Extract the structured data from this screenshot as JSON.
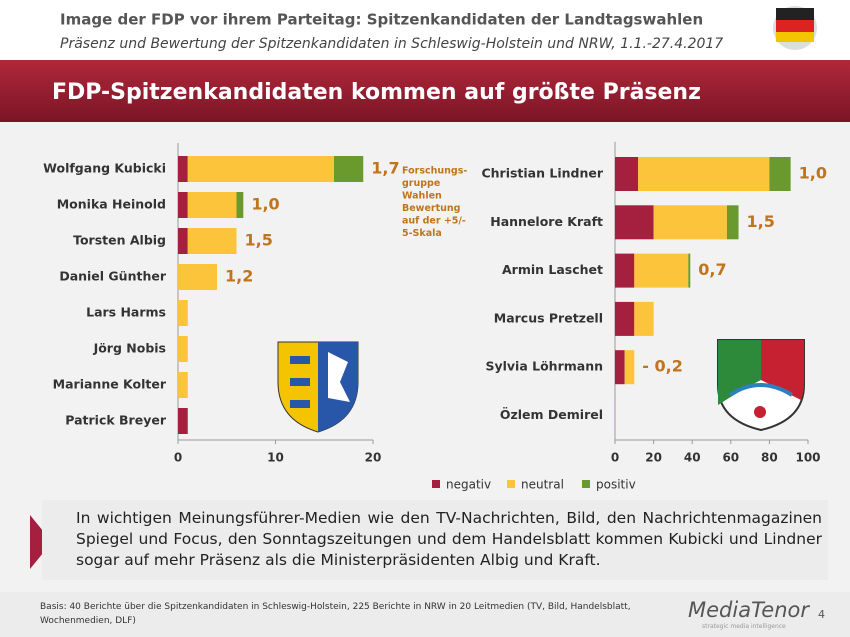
{
  "header": {
    "title": "Image der FDP vor ihrem Parteitag: Spitzenkandidaten der Landtagswahlen",
    "subtitle": "Präsenz und Bewertung der Spitzenkandidaten in Schleswig-Holstein und NRW, 1.1.-27.4.2017",
    "banner": "FDP-Spitzenkandidaten kommen auf größte Präsenz"
  },
  "chart_data": [
    {
      "type": "stacked-bar-horizontal",
      "categories": [
        "Wolfgang Kubicki",
        "Monika Heinold",
        "Torsten Albig",
        "Daniel Günther",
        "Lars Harms",
        "Jörg Nobis",
        "Marianne Kolter",
        "Patrick Breyer"
      ],
      "series": [
        {
          "name": "negativ",
          "color": "#a51f3f",
          "values": [
            1,
            1,
            1,
            0,
            0,
            0,
            0,
            1
          ]
        },
        {
          "name": "neutral",
          "color": "#fbc43a",
          "values": [
            15,
            5,
            5,
            4,
            1,
            1,
            1,
            0
          ]
        },
        {
          "name": "positiv",
          "color": "#6a9a2e",
          "values": [
            3,
            0.7,
            0,
            0,
            0,
            0,
            0,
            0
          ]
        }
      ],
      "rating_labels": [
        "1,7",
        "1,0",
        "1,5",
        "1,2",
        null,
        null,
        null,
        null
      ],
      "annotation": [
        "Forschungs-",
        "gruppe",
        "Wahlen",
        "Bewertung",
        "auf der +5/-",
        "5-Skala"
      ],
      "xlim": [
        0,
        20
      ],
      "xticks": [
        0,
        10,
        20
      ]
    },
    {
      "type": "stacked-bar-horizontal",
      "categories": [
        "Christian Lindner",
        "Hannelore Kraft",
        "Armin Laschet",
        "Marcus Pretzell",
        "Sylvia Löhrmann",
        "Özlem Demirel"
      ],
      "series": [
        {
          "color": "#a51f3f",
          "values": [
            12,
            20,
            10,
            10,
            5,
            0
          ]
        },
        {
          "color": "#fbc43a",
          "values": [
            68,
            38,
            28,
            10,
            5,
            0.5
          ]
        },
        {
          "color": "#6a9a2e",
          "values": [
            11,
            6,
            1,
            0,
            0,
            0
          ]
        }
      ],
      "rating_labels": [
        "1,0",
        "1,5",
        "0,7",
        null,
        "- 0,2",
        null
      ],
      "xlim": [
        0,
        100
      ],
      "xticks": [
        0,
        20,
        40,
        60,
        80,
        100
      ]
    }
  ],
  "text": "In wichtigen Meinungsführer-Medien wie den TV-Nachrichten, Bild, den Nachrichtenmagazinen Spiegel und Focus, den Sonntagszeitungen und dem Handelsblatt kommen Kubicki und Lindner sogar auf mehr Präsenz als die Ministerpräsidenten Albig und Kraft.",
  "footer": {
    "basis": "Basis: 40 Berichte über die Spitzenkandidaten in Schleswig-Holstein, 225 Berichte in NRW in 20 Leitmedien (TV, Bild, Handelsblatt, Wochenmedien, DLF)",
    "logo": "MediaTenor",
    "tagline": "strategic media intelligence",
    "page": "4"
  }
}
